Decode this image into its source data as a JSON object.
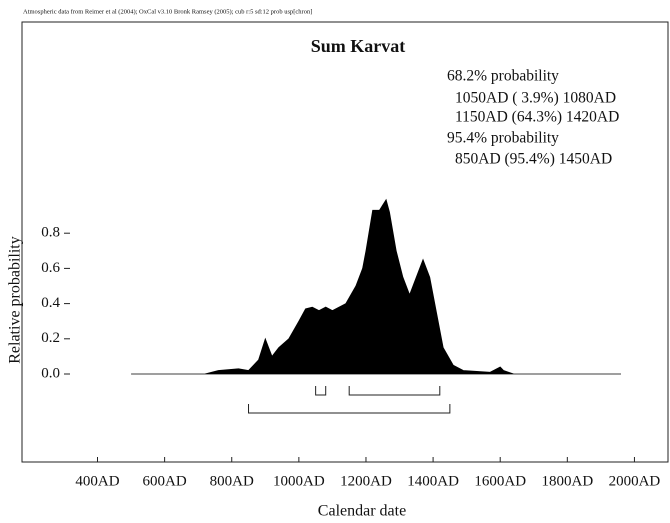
{
  "chart_data": {
    "type": "area",
    "header": "Atmospheric data from Reimer et al (2004); OxCal v3.10 Bronk Ramsey (2005); cub r:5 sd:12 prob usp[chron]",
    "title": "Sum Karvat",
    "annotations": [
      "68.2% probability",
      "1050AD ( 3.9%) 1080AD",
      "1150AD (64.3%) 1420AD",
      "95.4% probability",
      "850AD (95.4%) 1450AD"
    ],
    "x_label": "Calendar date",
    "y_label": "Relative probability",
    "x": [
      500,
      720,
      760,
      820,
      850,
      880,
      900,
      920,
      940,
      970,
      1000,
      1020,
      1040,
      1060,
      1080,
      1100,
      1140,
      1170,
      1190,
      1200,
      1220,
      1240,
      1260,
      1270,
      1290,
      1310,
      1330,
      1350,
      1370,
      1390,
      1410,
      1430,
      1460,
      1490,
      1570,
      1600,
      1610,
      1640,
      1960
    ],
    "values": [
      0,
      0,
      0.02,
      0.03,
      0.02,
      0.08,
      0.2,
      0.1,
      0.15,
      0.2,
      0.3,
      0.37,
      0.38,
      0.36,
      0.38,
      0.36,
      0.4,
      0.5,
      0.6,
      0.7,
      0.93,
      0.93,
      0.99,
      0.92,
      0.7,
      0.55,
      0.45,
      0.55,
      0.65,
      0.55,
      0.35,
      0.15,
      0.05,
      0.02,
      0.01,
      0.04,
      0.02,
      0,
      0
    ],
    "color": "#000000",
    "ranges": [
      {
        "from": 1050,
        "to": 1080,
        "level": 0
      },
      {
        "from": 1150,
        "to": 1420,
        "level": 0
      },
      {
        "from": 850,
        "to": 1450,
        "level": 1
      }
    ],
    "xlim": [
      175,
      2100
    ],
    "xticks": [
      {
        "value": 400,
        "label": "400AD"
      },
      {
        "value": 600,
        "label": "600AD"
      },
      {
        "value": 800,
        "label": "800AD"
      },
      {
        "value": 1000,
        "label": "1000AD"
      },
      {
        "value": 1200,
        "label": "1200AD"
      },
      {
        "value": 1400,
        "label": "1400AD"
      },
      {
        "value": 1600,
        "label": "1600AD"
      },
      {
        "value": 1800,
        "label": "1800AD"
      },
      {
        "value": 2000,
        "label": "2000AD"
      }
    ],
    "ylim": [
      -0.5,
      2.0
    ],
    "yticks": [
      {
        "value": 0,
        "label": "0.0"
      },
      0.2,
      0.4,
      0.6,
      0.8
    ]
  }
}
